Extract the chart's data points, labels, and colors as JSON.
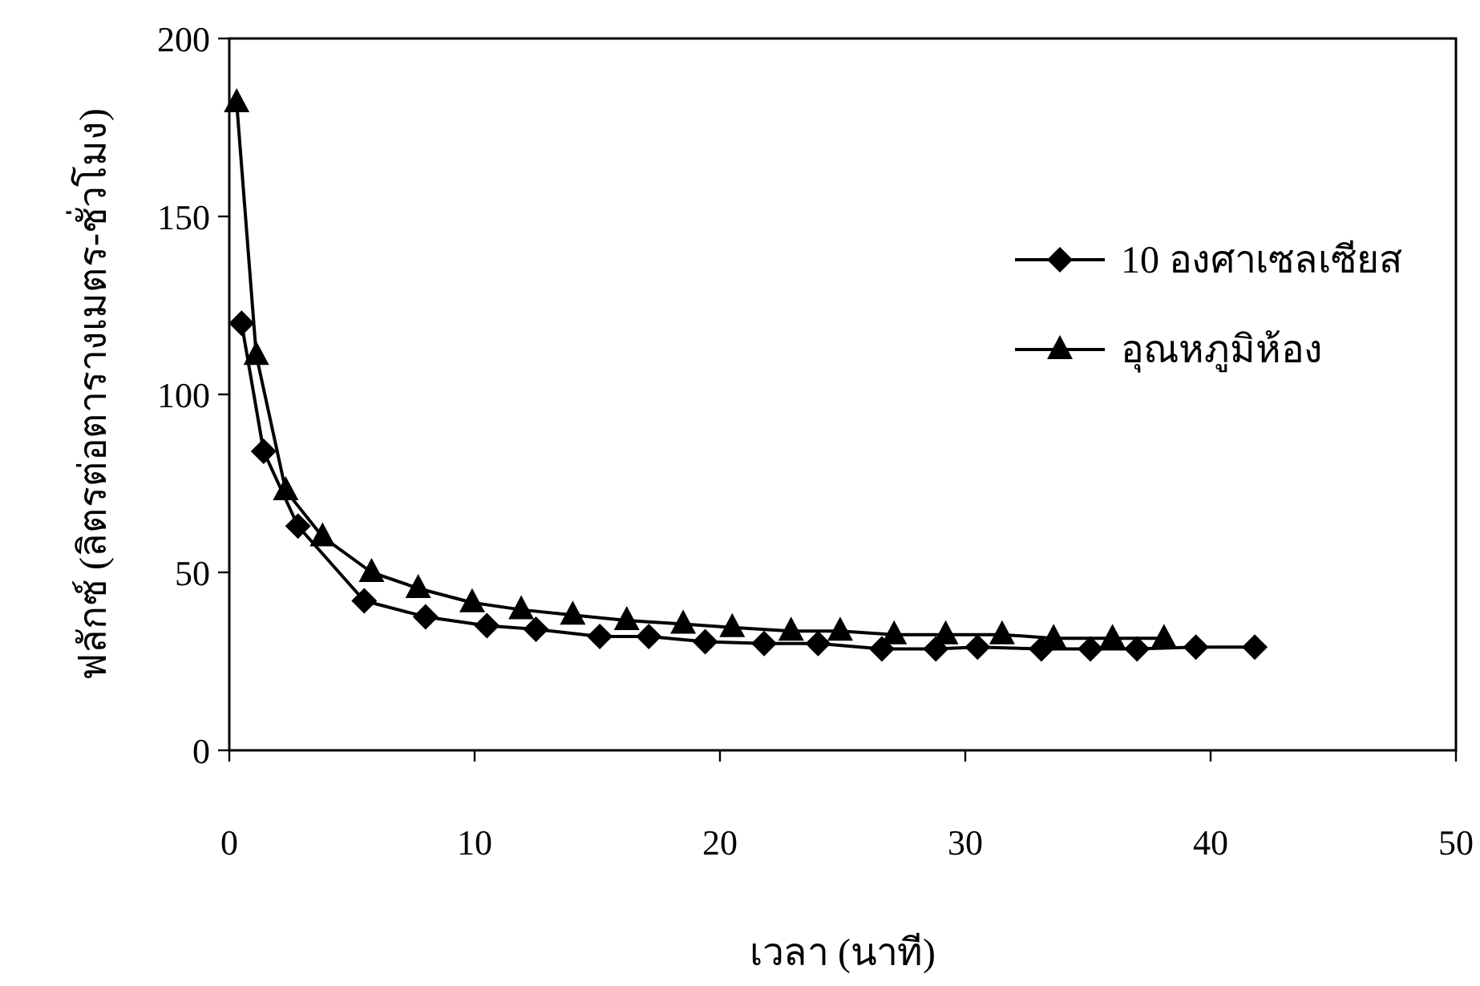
{
  "chart_data": {
    "type": "line",
    "xlabel": "เวลา (นาที)",
    "ylabel": "ฟลักซ์ (ลิตรต่อตารางเมตร-ชั่วโมง)",
    "xlim": [
      0,
      50
    ],
    "xticks": [
      0,
      10,
      20,
      30,
      40,
      50
    ],
    "ylim": [
      0,
      200
    ],
    "yticks": [
      0,
      50,
      100,
      150,
      200
    ],
    "legend": "top right",
    "line_style": "solid",
    "grid": false,
    "series": [
      {
        "name": "10 องศาเซลเซียส",
        "color": "#000000",
        "marker": "diamond",
        "x": [
          0.5,
          1.4,
          2.8,
          5.5,
          8.0,
          10.5,
          12.5,
          15.1,
          17.1,
          19.4,
          21.8,
          24.0,
          26.6,
          28.8,
          30.5,
          33.1,
          35.1,
          37.0,
          39.4,
          41.8
        ],
        "values": [
          120,
          84,
          63,
          42,
          37.5,
          35,
          34,
          32,
          32,
          30.5,
          30,
          30,
          28.5,
          28.5,
          29,
          28.5,
          28.5,
          28.5,
          29,
          29
        ]
      },
      {
        "name": "อุณหภูมิห้อง",
        "color": "#000000",
        "marker": "triangle",
        "x": [
          0.3,
          1.1,
          2.3,
          3.8,
          5.8,
          7.7,
          9.9,
          11.9,
          14.0,
          16.2,
          18.5,
          20.5,
          22.9,
          24.9,
          27.1,
          29.2,
          31.5,
          33.6,
          36.0,
          38.1
        ],
        "values": [
          182,
          111,
          73,
          60,
          50,
          45.5,
          41.5,
          39.5,
          38,
          36.5,
          35.5,
          34.5,
          33.5,
          33.5,
          32.5,
          32.5,
          32.5,
          31.5,
          31.5,
          31.5
        ]
      }
    ]
  }
}
